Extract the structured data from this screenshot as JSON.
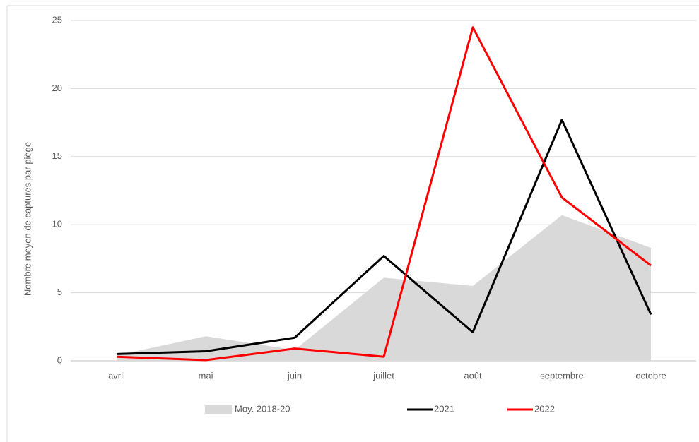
{
  "chart_data": {
    "type": "line",
    "ylabel": "Nombre moyen de captures par piège",
    "categories": [
      "avril",
      "mai",
      "juin",
      "juillet",
      "août",
      "septembre",
      "octobre"
    ],
    "series": [
      {
        "name": "Moy. 2018-20",
        "color": "#d9d9d9",
        "kind": "area",
        "values": [
          0.4,
          1.8,
          0.8,
          6.1,
          5.5,
          10.7,
          8.3
        ]
      },
      {
        "name": "2021",
        "color": "#000000",
        "kind": "line",
        "values": [
          0.5,
          0.7,
          1.7,
          7.7,
          2.1,
          17.7,
          3.4
        ]
      },
      {
        "name": "2022",
        "color": "#ff0000",
        "kind": "line",
        "values": [
          0.3,
          0.05,
          0.9,
          0.3,
          24.5,
          12,
          7
        ]
      }
    ],
    "ylim": [
      0,
      25
    ],
    "yticks": [
      0,
      5,
      10,
      15,
      20,
      25
    ],
    "grid": true,
    "legend": "bottom"
  }
}
